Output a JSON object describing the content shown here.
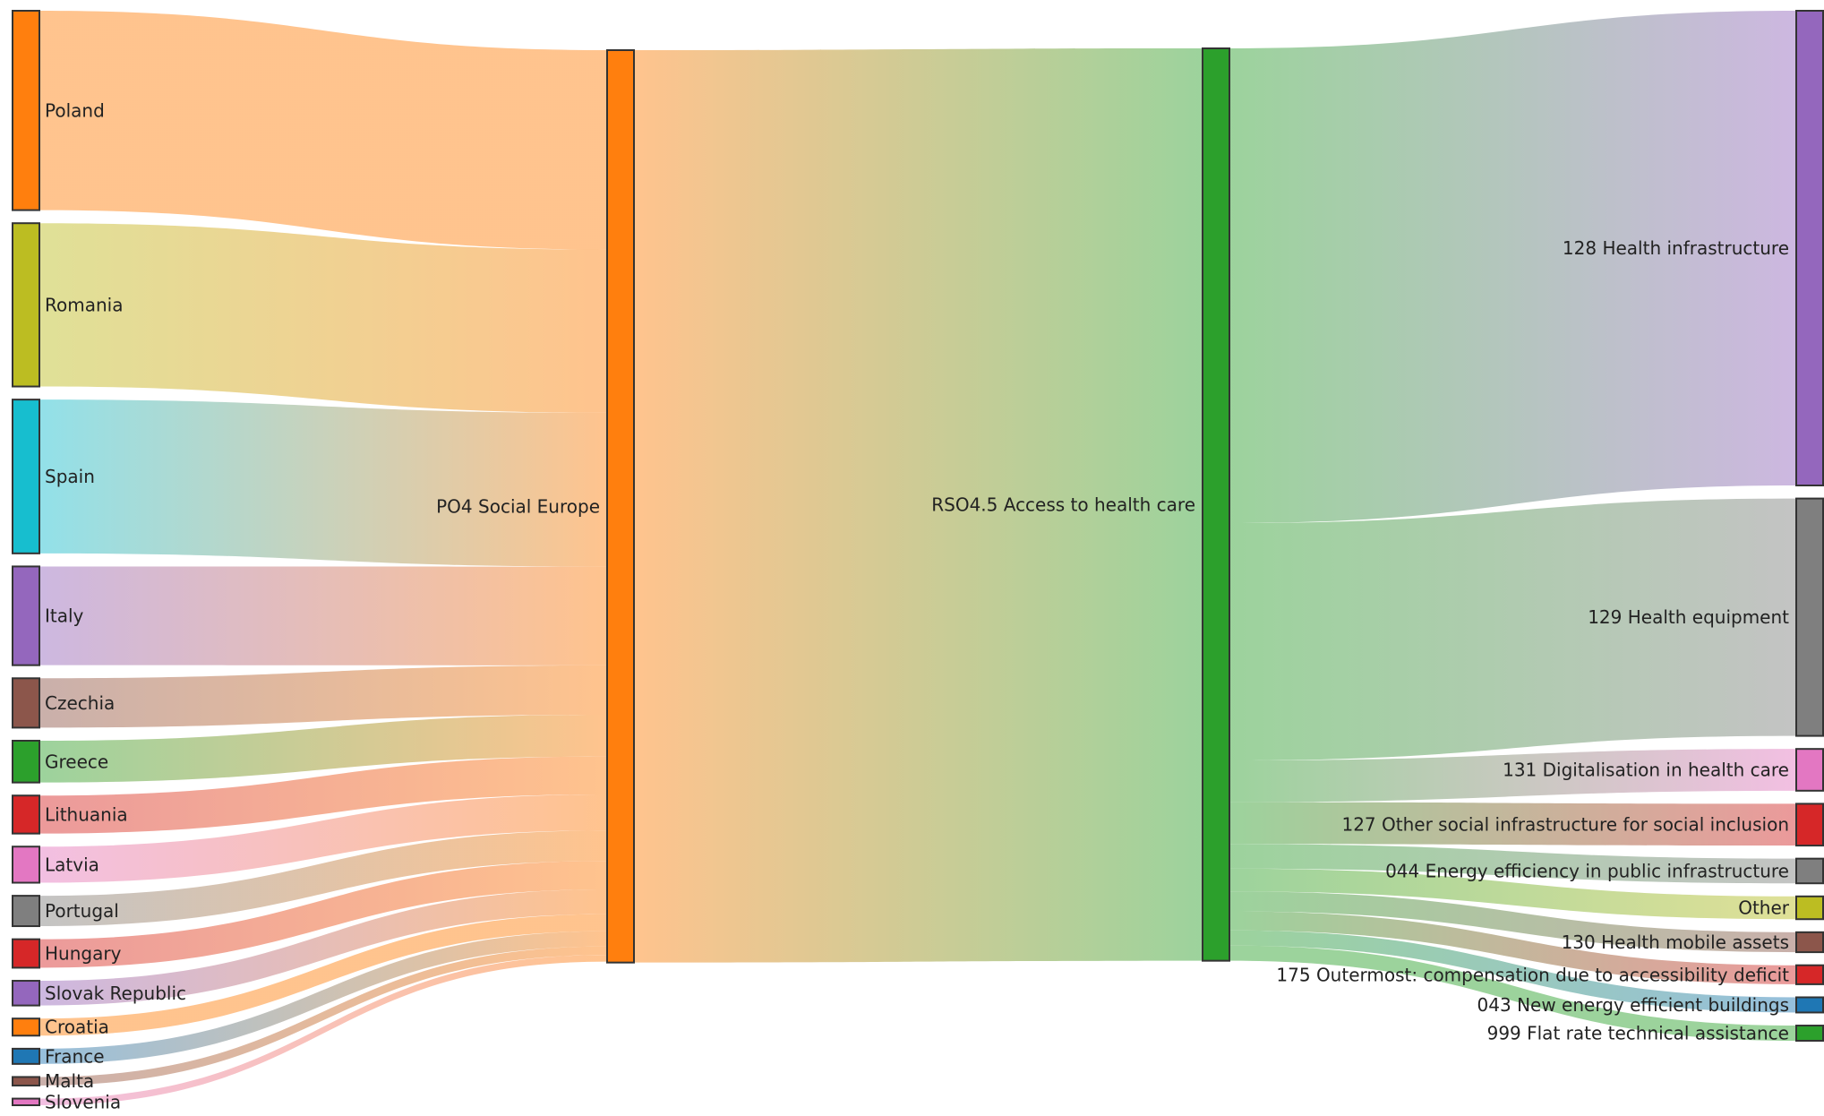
{
  "chart_data": {
    "type": "sankey",
    "columns": [
      [
        {
          "id": "poland",
          "label": "Poland",
          "color": "#ff7f0e",
          "value": 10.5
        },
        {
          "id": "romania",
          "label": "Romania",
          "color": "#bcbd22",
          "value": 8.6
        },
        {
          "id": "spain",
          "label": "Spain",
          "color": "#17becf",
          "value": 8.1
        },
        {
          "id": "italy",
          "label": "Italy",
          "color": "#9467bd",
          "value": 5.2
        },
        {
          "id": "czechia",
          "label": "Czechia",
          "color": "#8c564b",
          "value": 2.6
        },
        {
          "id": "greece",
          "label": "Greece",
          "color": "#2ca02c",
          "value": 2.2
        },
        {
          "id": "lithuania",
          "label": "Lithuania",
          "color": "#d62728",
          "value": 2.0
        },
        {
          "id": "latvia",
          "label": "Latvia",
          "color": "#e377c2",
          "value": 1.9
        },
        {
          "id": "portugal",
          "label": "Portugal",
          "color": "#7f7f7f",
          "value": 1.6
        },
        {
          "id": "hungary",
          "label": "Hungary",
          "color": "#d62728",
          "value": 1.5
        },
        {
          "id": "slovak",
          "label": "Slovak Republic",
          "color": "#9467bd",
          "value": 1.3
        },
        {
          "id": "croatia",
          "label": "Croatia",
          "color": "#ff7f0e",
          "value": 0.9
        },
        {
          "id": "france",
          "label": "France",
          "color": "#1f77b4",
          "value": 0.8
        },
        {
          "id": "malta",
          "label": "Malta",
          "color": "#8c564b",
          "value": 0.45
        },
        {
          "id": "slovenia",
          "label": "Slovenia",
          "color": "#e377c2",
          "value": 0.35
        }
      ],
      [
        {
          "id": "po4",
          "label": "PO4 Social Europe",
          "color": "#ff7f0e",
          "value": 48.05
        }
      ],
      [
        {
          "id": "rso45",
          "label": "RSO4.5 Access to health care",
          "color": "#2ca02c",
          "value": 48.05
        }
      ],
      [
        {
          "id": "c128",
          "label": "128 Health infrastructure",
          "color": "#9467bd",
          "value": 25.0
        },
        {
          "id": "c129",
          "label": "129 Health equipment",
          "color": "#7f7f7f",
          "value": 12.5
        },
        {
          "id": "c131",
          "label": "131 Digitalisation in health care",
          "color": "#e377c2",
          "value": 2.2
        },
        {
          "id": "c127",
          "label": "127 Other social infrastructure for social inclusion",
          "color": "#d62728",
          "value": 2.2
        },
        {
          "id": "c044",
          "label": "044 Energy efficiency in public infrastructure",
          "color": "#7f7f7f",
          "value": 1.3
        },
        {
          "id": "other",
          "label": "Other",
          "color": "#bcbd22",
          "value": 1.2
        },
        {
          "id": "c130",
          "label": "130 Health mobile assets",
          "color": "#8c564b",
          "value": 1.05
        },
        {
          "id": "c175",
          "label": "175 Outermost: compensation due to accessibility deficit",
          "color": "#d62728",
          "value": 1.0
        },
        {
          "id": "c043",
          "label": "043 New energy efficient buildings",
          "color": "#1f77b4",
          "value": 0.8
        },
        {
          "id": "c999",
          "label": "999 Flat rate technical assistance",
          "color": "#2ca02c",
          "value": 0.8
        }
      ]
    ]
  }
}
